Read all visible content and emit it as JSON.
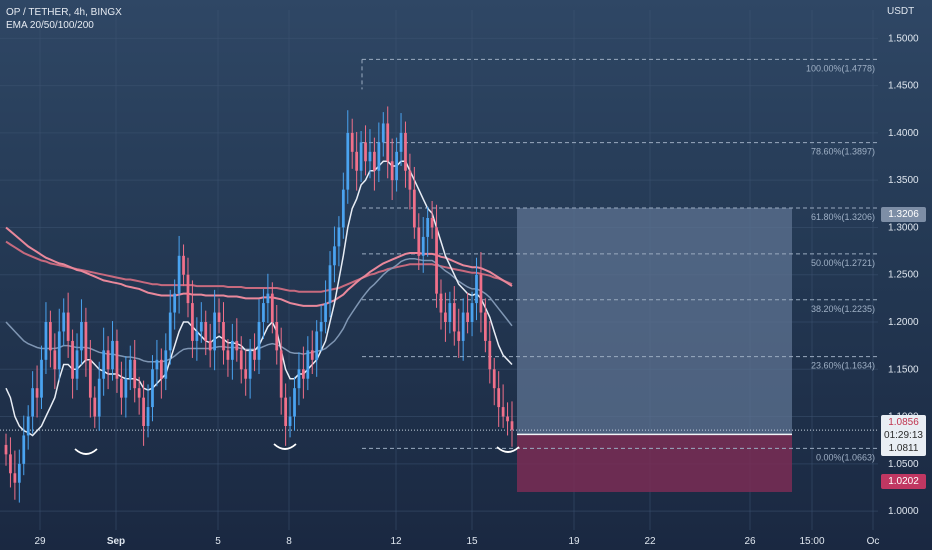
{
  "legend": {
    "symbol_line": "OP / TETHER, 4h, BINGX",
    "indicator_line": "EMA 20/50/100/200"
  },
  "axis": {
    "currency": "USDT",
    "y_ticks": [
      "1.5000",
      "1.4500",
      "1.4000",
      "1.3500",
      "1.3000",
      "1.2500",
      "1.2000",
      "1.1500",
      "1.1000",
      "1.0500",
      "1.0000"
    ],
    "x_ticks": [
      "29",
      "Sep",
      "5",
      "8",
      "12",
      "15",
      "19",
      "22",
      "26",
      "15:00",
      "Oc"
    ]
  },
  "price_tags": {
    "last_price": "1.0856",
    "countdown": "01:29:13",
    "entry": "1.0811",
    "target": "1.3206",
    "stop": "1.0202"
  },
  "colors": {
    "up": "#4aa3f0",
    "down": "#f0708a",
    "ema20": "#e8edf5",
    "ema50": "#7f96b3",
    "ema100": "#e9889b",
    "ema200": "#c76a7e",
    "target_zone": "#5d7391",
    "stop_zone": "#7a2d55"
  },
  "chart_data": {
    "type": "candlestick",
    "pair": "OP / TETHER",
    "timeframe": "4h",
    "exchange": "BINGX",
    "y_range": [
      0.98,
      1.53
    ],
    "fibonacci": [
      {
        "label": "100.00%(1.4778)",
        "value": 1.4778
      },
      {
        "label": "78.60%(1.3897)",
        "value": 1.3897
      },
      {
        "label": "61.80%(1.3206)",
        "value": 1.3206
      },
      {
        "label": "50.00%(1.2721)",
        "value": 1.2721
      },
      {
        "label": "38.20%(1.2235)",
        "value": 1.2235
      },
      {
        "label": "23.60%(1.1634)",
        "value": 1.1634
      },
      {
        "label": "0.00%(1.0663)",
        "value": 1.0663
      }
    ],
    "position": {
      "entry": 1.0811,
      "target": 1.3206,
      "stop": 1.0202
    },
    "last_price": 1.0856,
    "candles_close": [
      1.06,
      1.04,
      1.03,
      1.05,
      1.08,
      1.1,
      1.13,
      1.12,
      1.16,
      1.2,
      1.17,
      1.15,
      1.19,
      1.21,
      1.18,
      1.14,
      1.17,
      1.2,
      1.16,
      1.12,
      1.1,
      1.14,
      1.17,
      1.15,
      1.18,
      1.14,
      1.12,
      1.14,
      1.16,
      1.13,
      1.12,
      1.09,
      1.11,
      1.15,
      1.16,
      1.14,
      1.17,
      1.21,
      1.23,
      1.27,
      1.25,
      1.22,
      1.18,
      1.19,
      1.2,
      1.18,
      1.17,
      1.21,
      1.2,
      1.17,
      1.16,
      1.18,
      1.17,
      1.15,
      1.14,
      1.17,
      1.16,
      1.2,
      1.22,
      1.23,
      1.2,
      1.17,
      1.12,
      1.09,
      1.1,
      1.13,
      1.15,
      1.14,
      1.17,
      1.16,
      1.19,
      1.2,
      1.22,
      1.26,
      1.28,
      1.3,
      1.34,
      1.4,
      1.38,
      1.36,
      1.39,
      1.37,
      1.38,
      1.36,
      1.39,
      1.41,
      1.37,
      1.35,
      1.38,
      1.4,
      1.36,
      1.34,
      1.3,
      1.27,
      1.29,
      1.31,
      1.3,
      1.23,
      1.21,
      1.2,
      1.22,
      1.19,
      1.18,
      1.21,
      1.2,
      1.22,
      1.25,
      1.21,
      1.18,
      1.15,
      1.13,
      1.11,
      1.1,
      1.095,
      1.086
    ],
    "ema20": [
      1.13,
      1.12,
      1.1,
      1.09,
      1.085,
      1.083,
      1.08,
      1.085,
      1.09,
      1.1,
      1.11,
      1.12,
      1.14,
      1.155,
      1.155,
      1.15,
      1.15,
      1.155,
      1.16,
      1.16,
      1.155,
      1.15,
      1.148,
      1.145,
      1.145,
      1.145,
      1.142,
      1.14,
      1.14,
      1.14,
      1.138,
      1.13,
      1.128,
      1.13,
      1.135,
      1.14,
      1.145,
      1.16,
      1.175,
      1.19,
      1.2,
      1.2,
      1.195,
      1.19,
      1.185,
      1.18,
      1.178,
      1.182,
      1.185,
      1.182,
      1.178,
      1.178,
      1.177,
      1.175,
      1.17,
      1.17,
      1.17,
      1.175,
      1.185,
      1.195,
      1.2,
      1.19,
      1.17,
      1.15,
      1.14,
      1.14,
      1.145,
      1.145,
      1.15,
      1.155,
      1.16,
      1.17,
      1.18,
      1.2,
      1.22,
      1.245,
      1.27,
      1.3,
      1.32,
      1.33,
      1.345,
      1.35,
      1.36,
      1.36,
      1.365,
      1.37,
      1.37,
      1.365,
      1.365,
      1.37,
      1.37,
      1.36,
      1.35,
      1.34,
      1.33,
      1.32,
      1.315,
      1.3,
      1.285,
      1.27,
      1.26,
      1.25,
      1.24,
      1.235,
      1.23,
      1.228,
      1.23,
      1.225,
      1.215,
      1.205,
      1.19,
      1.175,
      1.165,
      1.16,
      1.155
    ],
    "ema50": [
      1.2,
      1.195,
      1.19,
      1.185,
      1.18,
      1.177,
      1.175,
      1.173,
      1.172,
      1.172,
      1.172,
      1.172,
      1.173,
      1.175,
      1.175,
      1.174,
      1.173,
      1.173,
      1.173,
      1.172,
      1.17,
      1.168,
      1.167,
      1.166,
      1.166,
      1.165,
      1.164,
      1.163,
      1.163,
      1.162,
      1.161,
      1.159,
      1.158,
      1.158,
      1.158,
      1.158,
      1.159,
      1.161,
      1.164,
      1.168,
      1.171,
      1.172,
      1.172,
      1.172,
      1.172,
      1.172,
      1.172,
      1.173,
      1.174,
      1.174,
      1.173,
      1.173,
      1.173,
      1.172,
      1.171,
      1.171,
      1.171,
      1.172,
      1.174,
      1.176,
      1.177,
      1.176,
      1.174,
      1.171,
      1.168,
      1.167,
      1.167,
      1.166,
      1.167,
      1.168,
      1.169,
      1.17,
      1.172,
      1.176,
      1.18,
      1.186,
      1.193,
      1.203,
      1.21,
      1.217,
      1.224,
      1.23,
      1.236,
      1.24,
      1.245,
      1.25,
      1.254,
      1.257,
      1.26,
      1.264,
      1.266,
      1.267,
      1.267,
      1.266,
      1.265,
      1.265,
      1.265,
      1.262,
      1.258,
      1.254,
      1.251,
      1.247,
      1.243,
      1.24,
      1.237,
      1.235,
      1.235,
      1.233,
      1.23,
      1.226,
      1.22,
      1.214,
      1.208,
      1.202,
      1.196
    ],
    "ema100": [
      1.3,
      1.296,
      1.292,
      1.288,
      1.284,
      1.28,
      1.277,
      1.274,
      1.271,
      1.268,
      1.266,
      1.264,
      1.262,
      1.261,
      1.259,
      1.257,
      1.255,
      1.254,
      1.252,
      1.25,
      1.248,
      1.246,
      1.244,
      1.243,
      1.242,
      1.241,
      1.24,
      1.238,
      1.237,
      1.236,
      1.235,
      1.233,
      1.231,
      1.23,
      1.229,
      1.228,
      1.228,
      1.228,
      1.228,
      1.229,
      1.23,
      1.23,
      1.229,
      1.229,
      1.229,
      1.228,
      1.228,
      1.228,
      1.228,
      1.228,
      1.227,
      1.227,
      1.227,
      1.226,
      1.225,
      1.225,
      1.225,
      1.225,
      1.226,
      1.226,
      1.226,
      1.225,
      1.224,
      1.222,
      1.22,
      1.219,
      1.218,
      1.217,
      1.217,
      1.217,
      1.217,
      1.218,
      1.219,
      1.221,
      1.223,
      1.226,
      1.229,
      1.234,
      1.238,
      1.242,
      1.246,
      1.249,
      1.253,
      1.256,
      1.259,
      1.262,
      1.264,
      1.266,
      1.268,
      1.27,
      1.272,
      1.273,
      1.273,
      1.273,
      1.272,
      1.272,
      1.272,
      1.271,
      1.269,
      1.268,
      1.266,
      1.264,
      1.262,
      1.26,
      1.259,
      1.258,
      1.258,
      1.257,
      1.255,
      1.253,
      1.25,
      1.247,
      1.244,
      1.241,
      1.238
    ],
    "ema200": [
      1.285,
      1.282,
      1.279,
      1.276,
      1.273,
      1.271,
      1.269,
      1.267,
      1.265,
      1.264,
      1.262,
      1.261,
      1.26,
      1.259,
      1.258,
      1.257,
      1.256,
      1.255,
      1.254,
      1.253,
      1.252,
      1.251,
      1.25,
      1.249,
      1.248,
      1.247,
      1.246,
      1.245,
      1.245,
      1.244,
      1.243,
      1.242,
      1.241,
      1.24,
      1.24,
      1.239,
      1.239,
      1.239,
      1.239,
      1.239,
      1.239,
      1.239,
      1.239,
      1.238,
      1.238,
      1.238,
      1.238,
      1.238,
      1.238,
      1.238,
      1.237,
      1.237,
      1.237,
      1.237,
      1.236,
      1.236,
      1.236,
      1.236,
      1.236,
      1.236,
      1.236,
      1.236,
      1.235,
      1.234,
      1.233,
      1.233,
      1.232,
      1.232,
      1.232,
      1.232,
      1.232,
      1.232,
      1.233,
      1.234,
      1.235,
      1.236,
      1.238,
      1.24,
      1.242,
      1.244,
      1.246,
      1.248,
      1.25,
      1.251,
      1.253,
      1.254,
      1.256,
      1.257,
      1.258,
      1.259,
      1.26,
      1.261,
      1.261,
      1.261,
      1.261,
      1.261,
      1.261,
      1.26,
      1.259,
      1.258,
      1.257,
      1.256,
      1.255,
      1.254,
      1.253,
      1.252,
      1.252,
      1.251,
      1.25,
      1.249,
      1.247,
      1.246,
      1.244,
      1.242,
      1.24
    ]
  }
}
